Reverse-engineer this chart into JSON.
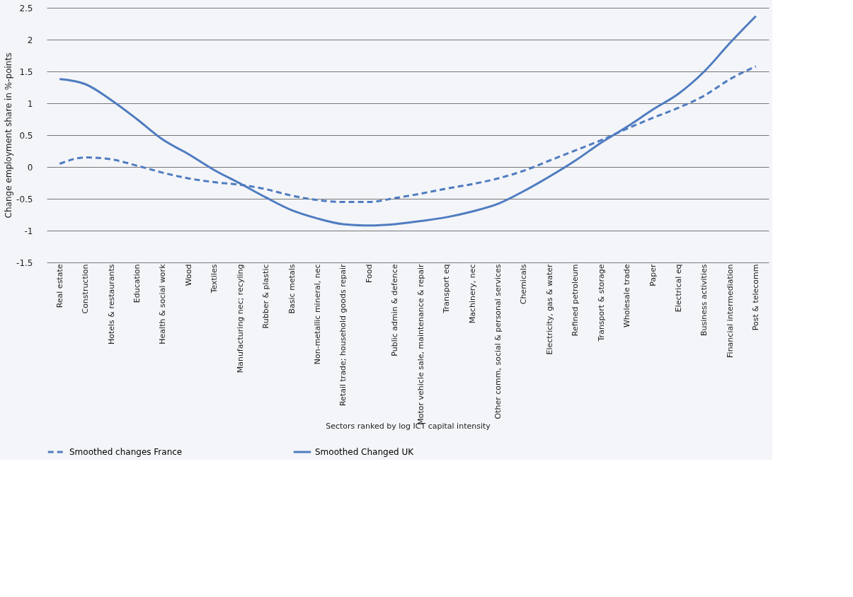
{
  "chart_data": {
    "type": "line",
    "xlabel": "Sectors ranked by log ICT capital intensity",
    "ylabel": "Change employment share in %-points",
    "categories": [
      "Real estate",
      "Construction",
      "Hotels & restaurants",
      "Education",
      "Health & social work",
      "Wood",
      "Textiles",
      "Manufacturing nec; recyling",
      "Rubber & plastic",
      "Basic metals",
      "Non-metallic mineral, nec",
      "Retail trade; household goods repair",
      "Food",
      "Public admin & defence",
      "Motor vehicle sale, maintenance & repair",
      "Transport eq",
      "Machinery, nec",
      "Other comm, social & personal services",
      "Chemicals",
      "Electricity, gas & water",
      "Refined petroleum",
      "Transport & storage",
      "Wholesale trade",
      "Paper",
      "Electrical eq",
      "Business activities",
      "Financial intermediation",
      "Post & telecomm"
    ],
    "series": [
      {
        "name": "Smoothed changes France",
        "color": "#4f7cc0",
        "line_style": "dashed",
        "values": [
          0.05,
          0.15,
          0.12,
          0.02,
          -0.09,
          -0.18,
          -0.24,
          -0.28,
          -0.35,
          -0.45,
          -0.52,
          -0.55,
          -0.55,
          -0.49,
          -0.42,
          -0.34,
          -0.27,
          -0.18,
          -0.06,
          0.1,
          0.26,
          0.42,
          0.6,
          0.77,
          0.93,
          1.12,
          1.38,
          1.58
        ]
      },
      {
        "name": "Smoothed Changed UK",
        "color": "#4f7cc0",
        "line_style": "solid",
        "values": [
          1.38,
          1.3,
          1.05,
          0.75,
          0.43,
          0.2,
          -0.05,
          -0.26,
          -0.48,
          -0.68,
          -0.81,
          -0.9,
          -0.92,
          -0.9,
          -0.85,
          -0.79,
          -0.7,
          -0.58,
          -0.38,
          -0.15,
          0.1,
          0.38,
          0.63,
          0.9,
          1.15,
          1.5,
          1.95,
          2.37
        ]
      }
    ],
    "ylim": [
      -1.5,
      2.5
    ],
    "yticks": [
      2.5,
      2,
      1.5,
      1,
      0.5,
      0,
      -0.5,
      -1,
      -1.5
    ],
    "grid": "y",
    "legend": "bottom",
    "marker": "none"
  }
}
